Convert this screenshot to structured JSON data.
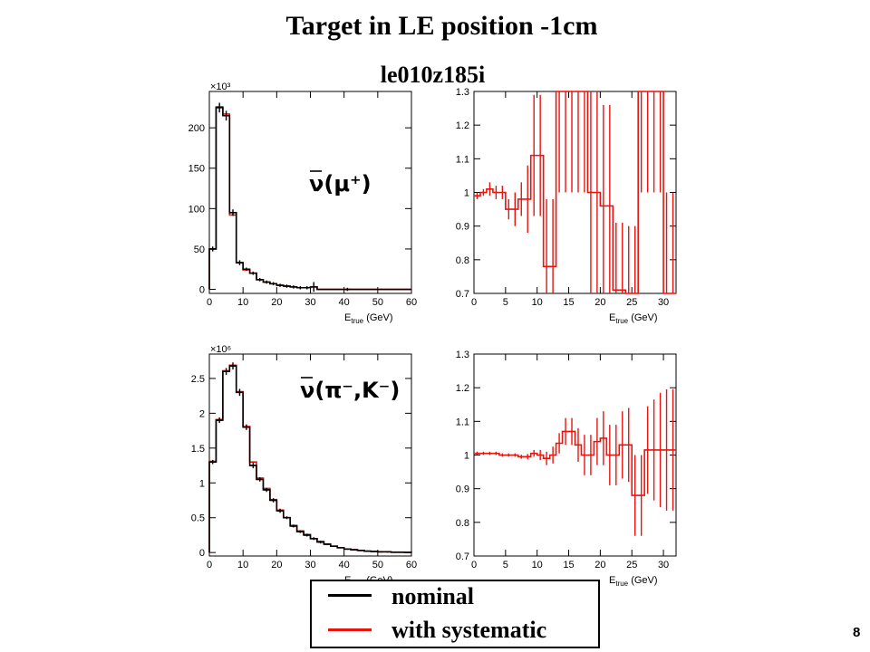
{
  "title": "Target in LE position -1cm",
  "subtitle": "le010z185i",
  "page_number": "8",
  "legend": [
    {
      "label": "nominal",
      "color": "#000000"
    },
    {
      "label": "with systematic",
      "color": "#e8140f"
    }
  ],
  "chart_data": [
    {
      "type": "histogram",
      "panel": "top-left",
      "annotation": "ν(μ⁺)",
      "annotation_overbar": "ν",
      "xlabel": "E_true (GeV)",
      "xlabel_main": "E",
      "xlabel_sub": "true",
      "xlabel_rest": " (GeV)",
      "exponent_label": "×10³",
      "xlim": [
        0,
        60
      ],
      "ylim": [
        -5,
        245
      ],
      "xticks": [
        0,
        10,
        20,
        30,
        40,
        50,
        60
      ],
      "yticks": [
        0,
        50,
        100,
        150,
        200
      ],
      "bin_edges": [
        0,
        2,
        4,
        6,
        8,
        10,
        12,
        14,
        16,
        18,
        20,
        22,
        24,
        26,
        28,
        30,
        32,
        34,
        36,
        38,
        40,
        42,
        44,
        46,
        48,
        50,
        52,
        54,
        56,
        58,
        60
      ],
      "series": [
        {
          "name": "nominal",
          "color": "#000000",
          "values": [
            50,
            225,
            215,
            95,
            33,
            25,
            20,
            12,
            9,
            7,
            5,
            4,
            3,
            2,
            2,
            3,
            0,
            0,
            0,
            0,
            0,
            0,
            0,
            0,
            0,
            0,
            0,
            0,
            0,
            0
          ],
          "errors": [
            3,
            6,
            6,
            4,
            3,
            2,
            2,
            2,
            2,
            2,
            2,
            2,
            2,
            2,
            2,
            6,
            0,
            0,
            0,
            0,
            2,
            0,
            0,
            0,
            0,
            0,
            0,
            0,
            0,
            0
          ]
        },
        {
          "name": "with systematic",
          "color": "#e8140f",
          "values": [
            50,
            226,
            217,
            92,
            33,
            24,
            20,
            12,
            9,
            7,
            5,
            4,
            3,
            2,
            2,
            3,
            0,
            0,
            0,
            0,
            0,
            0,
            0,
            0,
            0,
            0,
            0,
            0,
            0,
            0
          ]
        }
      ]
    },
    {
      "type": "step-ratio",
      "panel": "top-right",
      "xlabel": "E_true (GeV)",
      "xlabel_main": "E",
      "xlabel_sub": "true",
      "xlabel_rest": " (GeV)",
      "xlim": [
        0,
        32
      ],
      "ylim": [
        0.7,
        1.3
      ],
      "xticks": [
        0,
        5,
        10,
        15,
        20,
        25,
        30
      ],
      "yticks": [
        0.7,
        0.8,
        0.9,
        1,
        1.1,
        1.2,
        1.3
      ],
      "bin_edges": [
        0,
        1,
        2,
        3,
        4,
        5,
        6,
        7,
        8,
        9,
        10,
        11,
        12,
        13,
        14,
        15,
        16,
        17,
        18,
        19,
        20,
        21,
        22,
        23,
        24,
        25,
        26,
        27,
        28,
        29,
        30,
        31,
        32
      ],
      "series": [
        {
          "name": "with systematic",
          "color": "#e8140f",
          "values": [
            0.99,
            1.0,
            1.01,
            1.0,
            1.0,
            0.95,
            0.95,
            0.98,
            0.98,
            1.11,
            1.11,
            0.78,
            0.78,
            1.3,
            1.3,
            1.3,
            1.3,
            1.3,
            1.0,
            1.0,
            0.96,
            0.96,
            0.71,
            0.71,
            0.7,
            0.7,
            1.3,
            1.3,
            1.3,
            1.3,
            0.7,
            0.7
          ],
          "errors": [
            0.01,
            0.01,
            0.02,
            0.02,
            0.02,
            0.03,
            0.05,
            0.05,
            0.1,
            0.18,
            0.18,
            0.2,
            0.2,
            0.3,
            0.3,
            0.3,
            0.3,
            0.3,
            0.3,
            0.3,
            0.3,
            0.3,
            0.2,
            0.2,
            0.2,
            0.2,
            0.3,
            0.3,
            0.3,
            0.3,
            0.3,
            0.3
          ]
        }
      ]
    },
    {
      "type": "histogram",
      "panel": "bottom-left",
      "annotation": "ν(π⁻,K⁻)",
      "annotation_overbar": "ν",
      "xlabel": "E_true (GeV)",
      "xlabel_main": "E",
      "xlabel_sub": "true",
      "xlabel_rest": " (GeV)",
      "exponent_label": "×10⁶",
      "xlim": [
        0,
        60
      ],
      "ylim": [
        -0.05,
        2.85
      ],
      "xticks": [
        0,
        10,
        20,
        30,
        40,
        50,
        60
      ],
      "yticks": [
        0,
        0.5,
        1,
        1.5,
        2,
        2.5
      ],
      "bin_edges": [
        0,
        2,
        4,
        6,
        8,
        10,
        12,
        14,
        16,
        18,
        20,
        22,
        24,
        26,
        28,
        30,
        32,
        34,
        36,
        38,
        40,
        42,
        44,
        46,
        48,
        50,
        52,
        54,
        56,
        58,
        60
      ],
      "series": [
        {
          "name": "nominal",
          "color": "#000000",
          "values": [
            1.3,
            1.9,
            2.6,
            2.68,
            2.3,
            1.8,
            1.25,
            1.05,
            0.9,
            0.75,
            0.6,
            0.5,
            0.38,
            0.3,
            0.25,
            0.2,
            0.15,
            0.12,
            0.09,
            0.07,
            0.05,
            0.04,
            0.03,
            0.02,
            0.015,
            0.01,
            0.01,
            0.005,
            0.005,
            0.002
          ],
          "errors": [
            0.03,
            0.04,
            0.05,
            0.05,
            0.05,
            0.04,
            0.04,
            0.03,
            0.03,
            0.03,
            0.03,
            0.02,
            0.02,
            0.02,
            0.02,
            0.02,
            0.02,
            0.01,
            0.01,
            0.01,
            0.01,
            0.01,
            0.01,
            0.01,
            0.01,
            0.01,
            0.01,
            0.01,
            0.01,
            0.01
          ]
        },
        {
          "name": "with systematic",
          "color": "#e8140f",
          "values": [
            1.31,
            1.91,
            2.61,
            2.69,
            2.31,
            1.81,
            1.3,
            1.07,
            0.92,
            0.76,
            0.61,
            0.5,
            0.39,
            0.31,
            0.26,
            0.2,
            0.16,
            0.12,
            0.09,
            0.07,
            0.05,
            0.04,
            0.03,
            0.02,
            0.015,
            0.01,
            0.01,
            0.005,
            0.005,
            0.002
          ]
        }
      ]
    },
    {
      "type": "step-ratio",
      "panel": "bottom-right",
      "xlabel": "E_true (GeV)",
      "xlabel_main": "E",
      "xlabel_sub": "true",
      "xlabel_rest": " (GeV)",
      "xlim": [
        0,
        32
      ],
      "ylim": [
        0.7,
        1.3
      ],
      "xticks": [
        0,
        5,
        10,
        15,
        20,
        25,
        30
      ],
      "yticks": [
        0.7,
        0.8,
        0.9,
        1,
        1.1,
        1.2,
        1.3
      ],
      "bin_edges": [
        0,
        1,
        2,
        3,
        4,
        5,
        6,
        7,
        8,
        9,
        10,
        11,
        12,
        13,
        14,
        15,
        16,
        17,
        18,
        19,
        20,
        21,
        22,
        23,
        24,
        25,
        26,
        27,
        28,
        29,
        30,
        31,
        32
      ],
      "series": [
        {
          "name": "with systematic",
          "color": "#e8140f",
          "values": [
            1.005,
            1.005,
            1.005,
            1.005,
            1.0,
            1.0,
            1.0,
            0.995,
            0.995,
            1.005,
            1.0,
            0.99,
            1.0,
            1.035,
            1.07,
            1.07,
            1.03,
            1.0,
            1.0,
            1.04,
            1.05,
            1.0,
            1.0,
            1.03,
            1.03,
            0.88,
            0.88,
            1.015,
            1.015,
            1.015,
            1.015,
            1.015
          ],
          "errors": [
            0.005,
            0.005,
            0.005,
            0.005,
            0.005,
            0.005,
            0.005,
            0.006,
            0.008,
            0.01,
            0.015,
            0.02,
            0.025,
            0.03,
            0.04,
            0.04,
            0.05,
            0.06,
            0.06,
            0.07,
            0.08,
            0.09,
            0.09,
            0.1,
            0.11,
            0.12,
            0.12,
            0.13,
            0.15,
            0.17,
            0.18,
            0.18
          ]
        }
      ]
    }
  ]
}
